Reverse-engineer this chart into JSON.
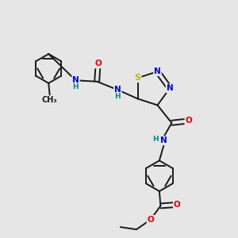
{
  "background_color": "#e6e6e6",
  "bond_color": "#1a1a1a",
  "bond_width": 1.4,
  "atom_colors": {
    "N": "#0000ee",
    "O": "#ee0000",
    "S": "#bbbb00",
    "H": "#008888",
    "C": "#1a1a1a"
  },
  "font_size_atom": 7.5,
  "font_size_H": 6.5
}
